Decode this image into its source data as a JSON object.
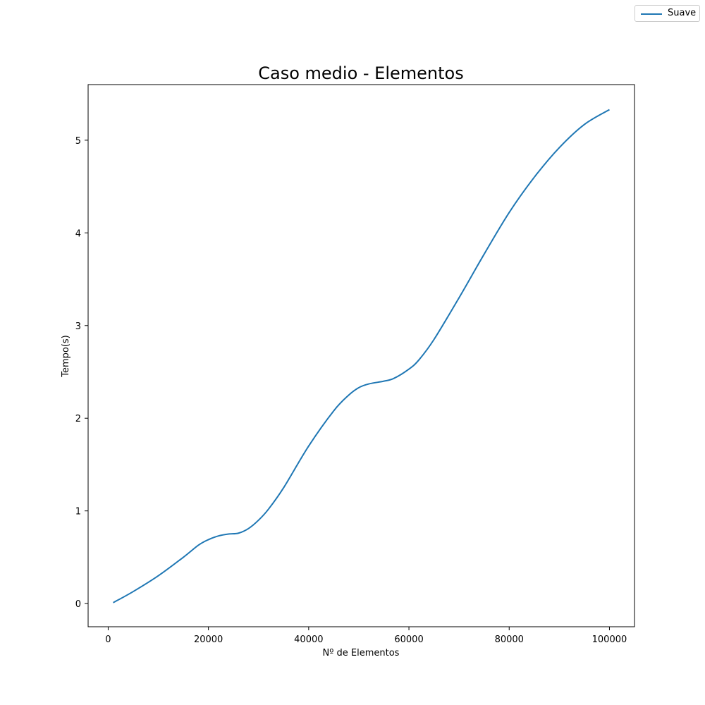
{
  "chart_data": {
    "type": "line",
    "title": "Caso medio - Elementos",
    "xlabel": "Nº de Elementos",
    "ylabel": "Tempo(s)",
    "xlim": [
      -4000,
      105000
    ],
    "ylim": [
      -0.25,
      5.6
    ],
    "xticks": [
      0,
      20000,
      40000,
      60000,
      80000,
      100000
    ],
    "yticks": [
      0,
      1,
      2,
      3,
      4,
      5
    ],
    "grid": false,
    "legend_position": "top-right",
    "series": [
      {
        "name": "Suave",
        "color": "#1f77b4",
        "x": [
          1000,
          5000,
          10000,
          15000,
          18000,
          20000,
          22000,
          24000,
          26000,
          28000,
          30000,
          32000,
          35000,
          40000,
          45000,
          48000,
          50000,
          52000,
          55000,
          57000,
          60000,
          62000,
          65000,
          70000,
          75000,
          80000,
          85000,
          90000,
          95000,
          100000
        ],
        "y": [
          0.01,
          0.13,
          0.3,
          0.5,
          0.63,
          0.69,
          0.73,
          0.75,
          0.76,
          0.81,
          0.9,
          1.02,
          1.25,
          1.7,
          2.08,
          2.25,
          2.33,
          2.37,
          2.4,
          2.43,
          2.53,
          2.63,
          2.85,
          3.3,
          3.77,
          4.22,
          4.6,
          4.92,
          5.17,
          5.33
        ]
      }
    ]
  }
}
